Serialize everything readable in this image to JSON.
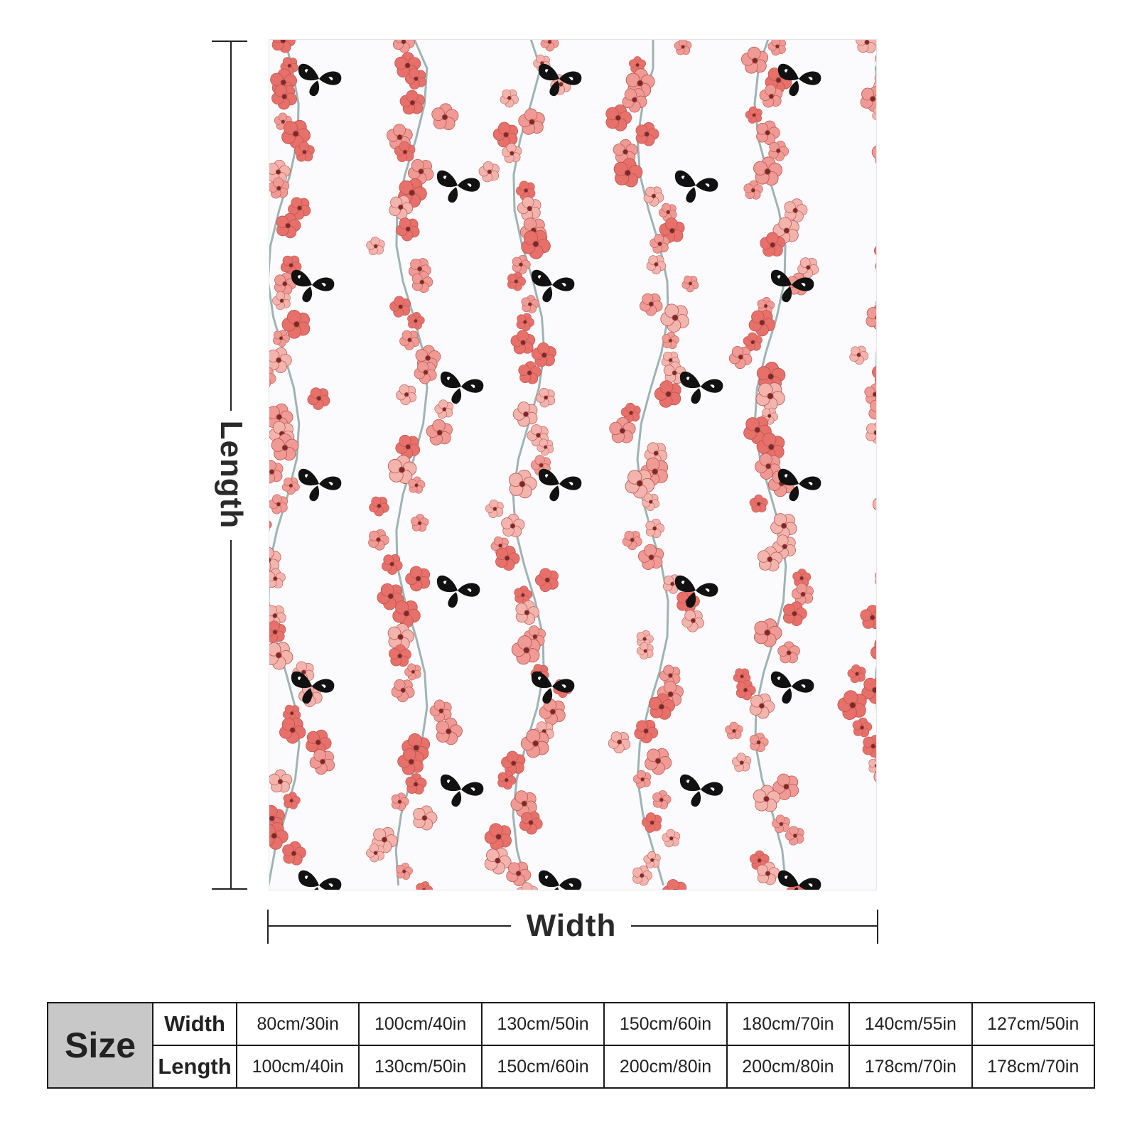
{
  "dimensions": {
    "length_label": "Length",
    "width_label": "Width"
  },
  "pattern": {
    "background_color": "#fbfbfd",
    "blossom_colors": [
      "#ef9a94",
      "#e8706a",
      "#f3b4ae"
    ],
    "branch_color": "#9fb3b4",
    "butterfly_color": "#111111"
  },
  "size_table": {
    "header": "Size",
    "row_labels": [
      "Width",
      "Length"
    ],
    "widths": [
      "80cm/30in",
      "100cm/40in",
      "130cm/50in",
      "150cm/60in",
      "180cm/70in",
      "140cm/55in",
      "127cm/50in"
    ],
    "lengths": [
      "100cm/40in",
      "130cm/50in",
      "150cm/60in",
      "200cm/80in",
      "200cm/80in",
      "178cm/70in",
      "178cm/70in"
    ]
  }
}
